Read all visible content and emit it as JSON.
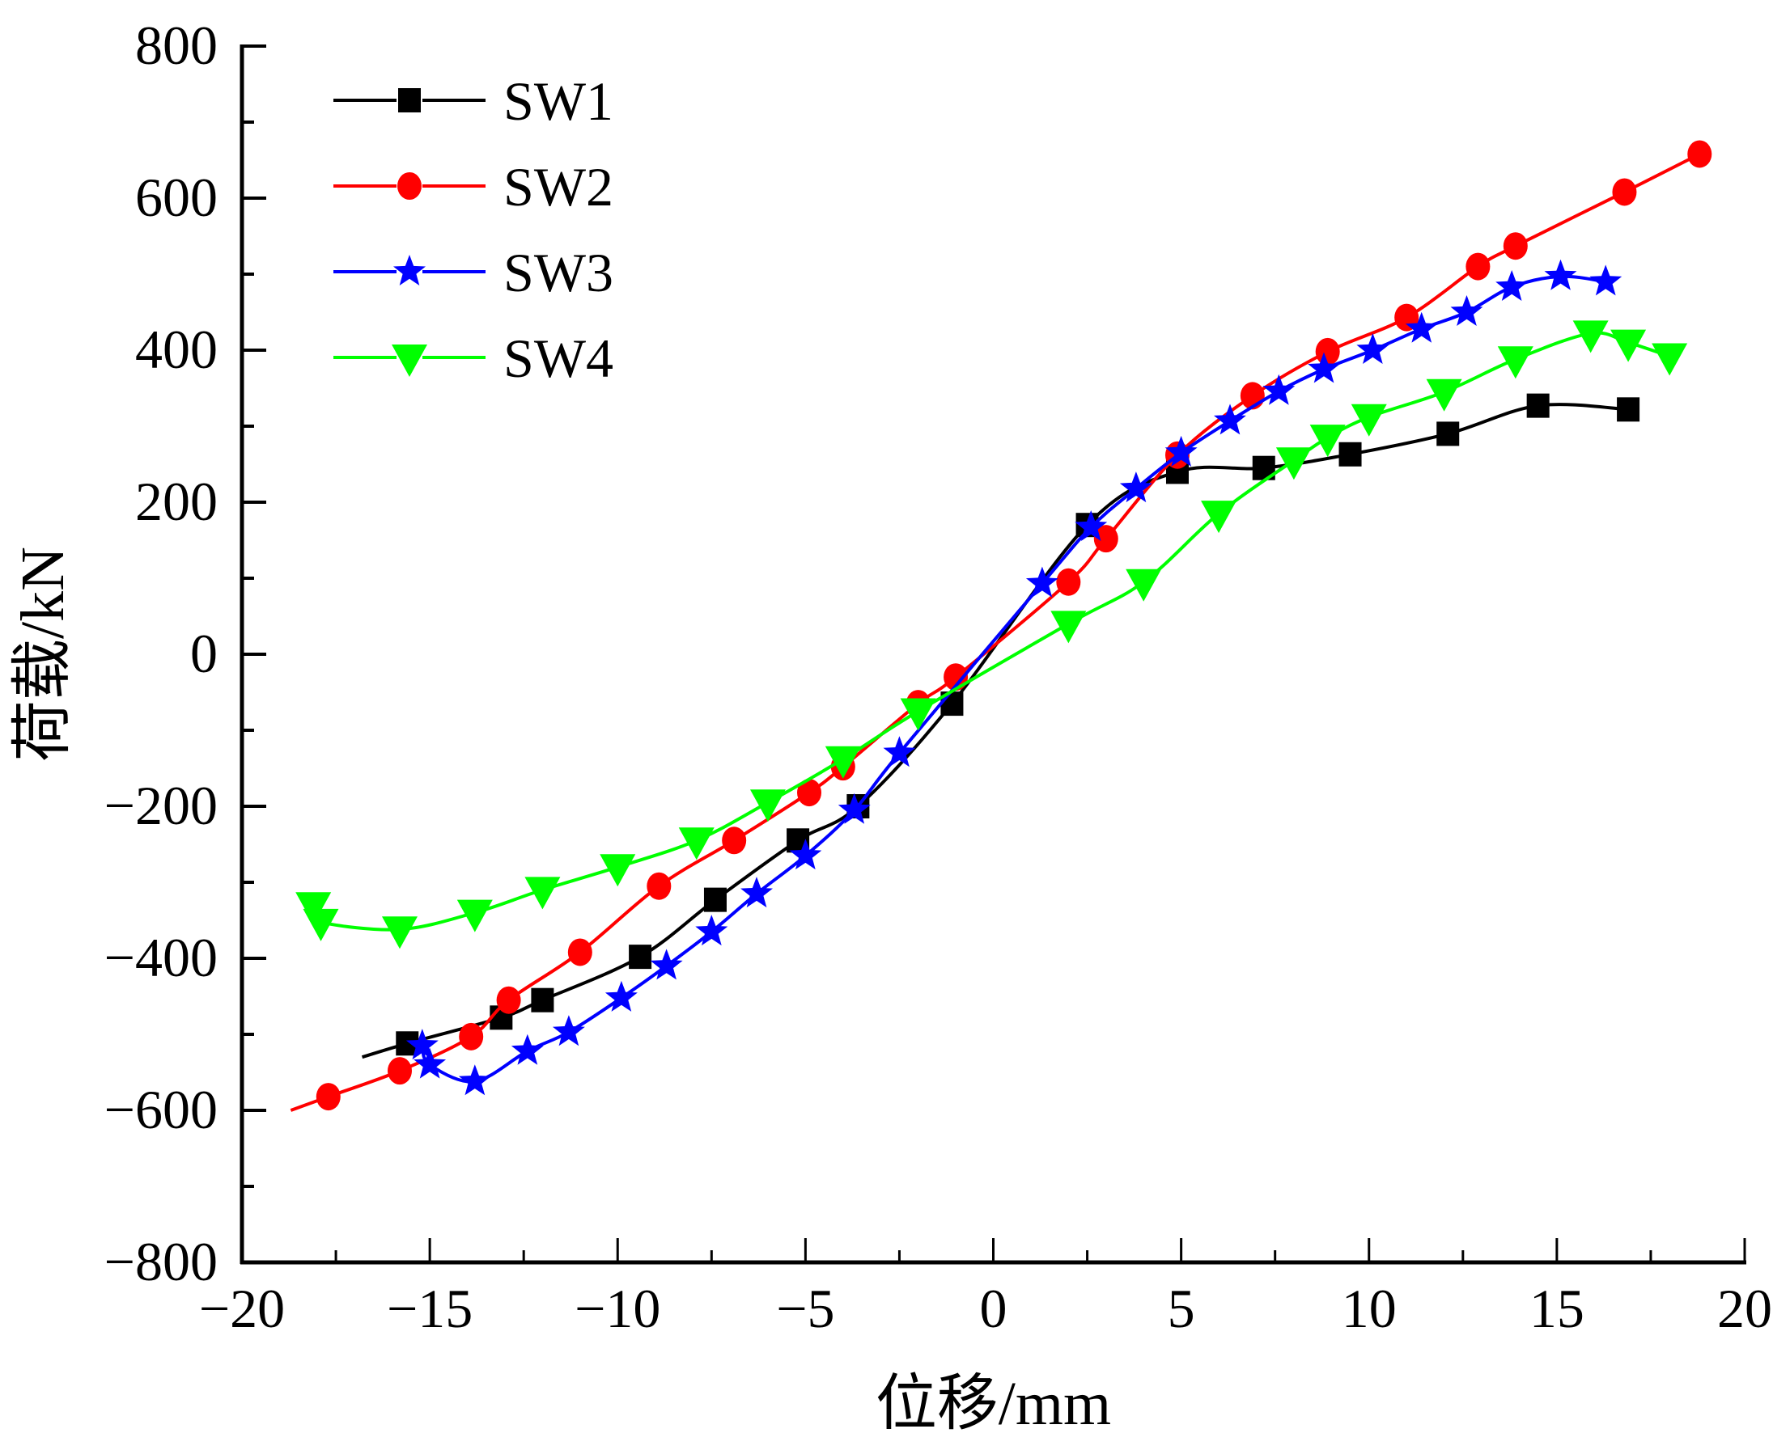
{
  "chart_data": {
    "type": "line",
    "title": "",
    "xlabel": "位移/mm",
    "ylabel": "荷载/kN",
    "xlim": [
      -20,
      20
    ],
    "ylim": [
      -800,
      800
    ],
    "xticks": [
      -20,
      -15,
      -10,
      -5,
      0,
      5,
      10,
      15,
      20
    ],
    "xtick_labels": [
      "−20",
      "−15",
      "−10",
      "−5",
      "0",
      "5",
      "10",
      "15",
      "20"
    ],
    "yticks": [
      -800,
      -600,
      -400,
      -200,
      0,
      200,
      400,
      600,
      800
    ],
    "ytick_labels": [
      "−800",
      "−600",
      "−400",
      "−200",
      "0",
      "200",
      "400",
      "600",
      "800"
    ],
    "grid": false,
    "legend_position": "top-left",
    "series": [
      {
        "name": "SW1",
        "color": "#000000",
        "marker": "square",
        "line_start": [
          -16.8,
          -530
        ],
        "points": [
          [
            -15.6,
            -512
          ],
          [
            -13.1,
            -478
          ],
          [
            -12.0,
            -455
          ],
          [
            -9.4,
            -398
          ],
          [
            -7.4,
            -323
          ],
          [
            -5.2,
            -245
          ],
          [
            -3.6,
            -200
          ],
          [
            -1.1,
            -65
          ],
          [
            2.5,
            170
          ],
          [
            4.9,
            240
          ],
          [
            7.2,
            245
          ],
          [
            9.5,
            263
          ],
          [
            12.1,
            290
          ],
          [
            14.5,
            327
          ],
          [
            16.9,
            322
          ]
        ]
      },
      {
        "name": "SW2",
        "color": "#ff0000",
        "marker": "circle",
        "line_start": [
          -18.7,
          -600
        ],
        "points": [
          [
            -17.7,
            -582
          ],
          [
            -15.8,
            -548
          ],
          [
            -13.9,
            -503
          ],
          [
            -12.9,
            -455
          ],
          [
            -11.0,
            -392
          ],
          [
            -8.9,
            -305
          ],
          [
            -6.9,
            -245
          ],
          [
            -4.9,
            -182
          ],
          [
            -4.0,
            -148
          ],
          [
            -2.0,
            -65
          ],
          [
            -1.0,
            -30
          ],
          [
            2.0,
            95
          ],
          [
            3.0,
            152
          ],
          [
            4.9,
            262
          ],
          [
            6.9,
            340
          ],
          [
            8.9,
            398
          ],
          [
            11.0,
            443
          ],
          [
            12.9,
            510
          ],
          [
            13.9,
            537
          ],
          [
            16.8,
            608
          ],
          [
            18.8,
            658
          ]
        ]
      },
      {
        "name": "SW3",
        "color": "#0000ff",
        "marker": "star",
        "points": [
          [
            -15.2,
            -515
          ],
          [
            -15.0,
            -540
          ],
          [
            -13.8,
            -562
          ],
          [
            -12.4,
            -522
          ],
          [
            -11.3,
            -497
          ],
          [
            -9.9,
            -452
          ],
          [
            -8.7,
            -410
          ],
          [
            -7.5,
            -365
          ],
          [
            -6.3,
            -315
          ],
          [
            -5.0,
            -265
          ],
          [
            -3.7,
            -205
          ],
          [
            -2.5,
            -130
          ],
          [
            1.3,
            93
          ],
          [
            2.6,
            167
          ],
          [
            3.8,
            218
          ],
          [
            5.0,
            265
          ],
          [
            6.3,
            307
          ],
          [
            7.6,
            346
          ],
          [
            8.8,
            375
          ],
          [
            10.1,
            400
          ],
          [
            11.4,
            428
          ],
          [
            12.6,
            450
          ],
          [
            13.8,
            483
          ],
          [
            15.1,
            497
          ],
          [
            16.3,
            490
          ]
        ]
      },
      {
        "name": "SW4",
        "color": "#00ff00",
        "marker": "triangle-down",
        "points": [
          [
            -18.1,
            -330
          ],
          [
            -17.9,
            -352
          ],
          [
            -15.8,
            -362
          ],
          [
            -13.8,
            -340
          ],
          [
            -12.0,
            -310
          ],
          [
            -10.0,
            -280
          ],
          [
            -7.9,
            -245
          ],
          [
            -6.0,
            -195
          ],
          [
            -4.0,
            -138
          ],
          [
            -2.0,
            -75
          ],
          [
            2.0,
            40
          ],
          [
            4.0,
            95
          ],
          [
            6.0,
            185
          ],
          [
            8.0,
            255
          ],
          [
            8.9,
            285
          ],
          [
            10.0,
            312
          ],
          [
            12.0,
            345
          ],
          [
            13.9,
            388
          ],
          [
            15.9,
            422
          ],
          [
            16.9,
            410
          ],
          [
            18.0,
            392
          ]
        ]
      }
    ]
  }
}
